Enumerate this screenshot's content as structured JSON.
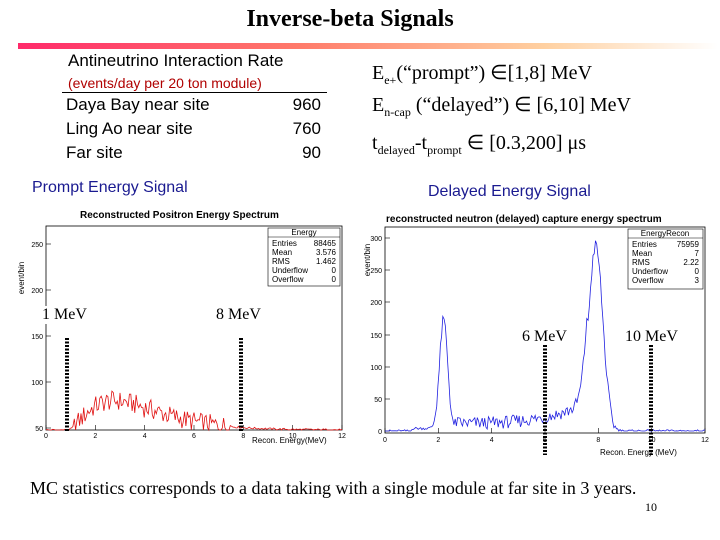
{
  "title": "Inverse-beta Signals",
  "rate_table": {
    "title": "Antineutrino Interaction Rate",
    "units": "(events/day per 20 ton module)",
    "rows": [
      {
        "site": "Daya Bay near site",
        "rate": "960"
      },
      {
        "site": "Ling Ao near site",
        "rate": "760"
      },
      {
        "site": "Far site",
        "rate": "90"
      }
    ]
  },
  "equations": {
    "line1_main": "E",
    "line1_sub": "e+",
    "line1_rest": "(“prompt”) ∈[1,8] MeV",
    "line2_main": "E",
    "line2_sub": "n-cap",
    "line2_rest": " (“delayed”) ∈ [6,10] MeV",
    "line3_a": "t",
    "line3_a_sub": "delayed",
    "line3_b": "-t",
    "line3_b_sub": "prompt",
    "line3_rest": " ∈ [0.3,200] μs"
  },
  "prompt": {
    "section_label": "Prompt Energy Signal",
    "plot_title": "Reconstructed Positron Energy Spectrum",
    "ylabel": "event/bin",
    "xlabel": "Recon. Energy(MeV)",
    "stats": {
      "name": "Energy",
      "rows": [
        [
          "Entries",
          "88465"
        ],
        [
          "Mean",
          "3.576"
        ],
        [
          "RMS",
          "1.462"
        ],
        [
          "Underflow",
          "0"
        ],
        [
          "Overflow",
          "0"
        ]
      ]
    },
    "yticks": [
      "250",
      "200",
      "150",
      "100",
      "50"
    ],
    "xticks": [
      "0",
      "2",
      "4",
      "6",
      "8",
      "10",
      "12"
    ],
    "marker_low": "1 MeV",
    "marker_high": "8 MeV",
    "color": "#e01010"
  },
  "delayed": {
    "section_label": "Delayed Energy Signal",
    "plot_title": "reconstructed neutron (delayed) capture energy spectrum",
    "ylabel": "event/bin",
    "xlabel": "Recon. Energy (MeV)",
    "stats": {
      "name": "EnergyRecon",
      "rows": [
        [
          "Entries",
          "75959"
        ],
        [
          "Mean",
          "7"
        ],
        [
          "RMS",
          "2.22"
        ],
        [
          "Underflow",
          "0"
        ],
        [
          "Overflow",
          "3"
        ]
      ]
    },
    "yticks": [
      "300",
      "250",
      "200",
      "150",
      "100",
      "50",
      "0"
    ],
    "xticks": [
      "0",
      "2",
      "4",
      "6",
      "8",
      "10",
      "12"
    ],
    "marker_low": "6 MeV",
    "marker_high": "10 MeV",
    "color": "#2020e0"
  },
  "footer": "MC statistics corresponds to a data taking with a single module at far site in 3 years.",
  "page_number": "10"
}
